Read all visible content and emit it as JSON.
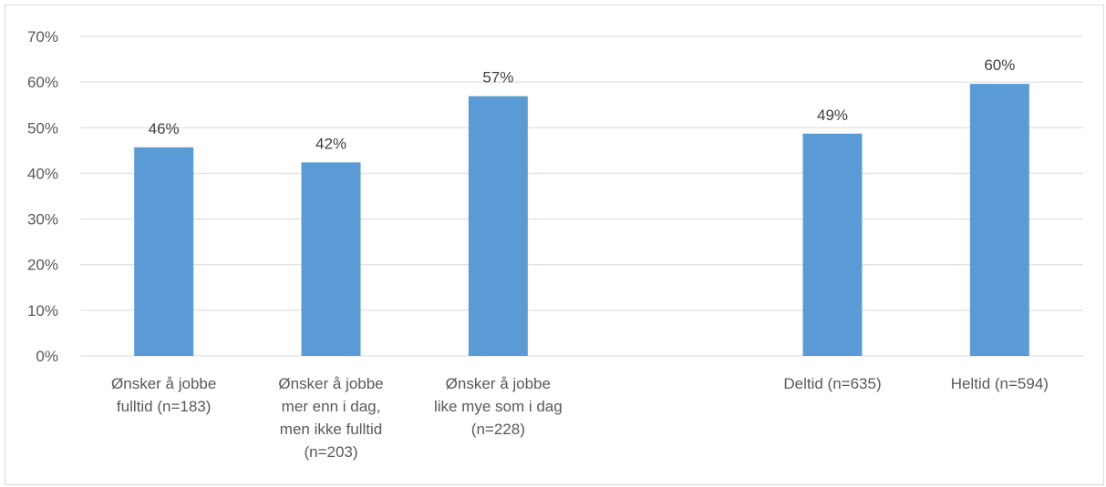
{
  "chart_data": {
    "type": "bar",
    "title": "",
    "xlabel": "",
    "ylabel": "",
    "ylim": [
      0,
      0.7
    ],
    "y_ticks": [
      "0%",
      "10%",
      "20%",
      "30%",
      "40%",
      "50%",
      "60%",
      "70%"
    ],
    "grid": true,
    "bar_color": "#5b9bd5",
    "categories": [
      [
        "Ønsker å jobbe",
        "fulltid (n=183)"
      ],
      [
        "Ønsker å jobbe",
        "mer enn i dag,",
        "men ikke fulltid",
        "(n=203)"
      ],
      [
        "Ønsker å jobbe",
        "like mye som i dag",
        "(n=228)"
      ],
      [],
      [
        "Deltid (n=635)"
      ],
      [
        "Heltid (n=594)"
      ]
    ],
    "values": [
      0.457,
      0.424,
      0.569,
      null,
      0.487,
      0.596
    ],
    "data_labels": [
      "46%",
      "42%",
      "57%",
      "",
      "49%",
      "60%"
    ]
  }
}
